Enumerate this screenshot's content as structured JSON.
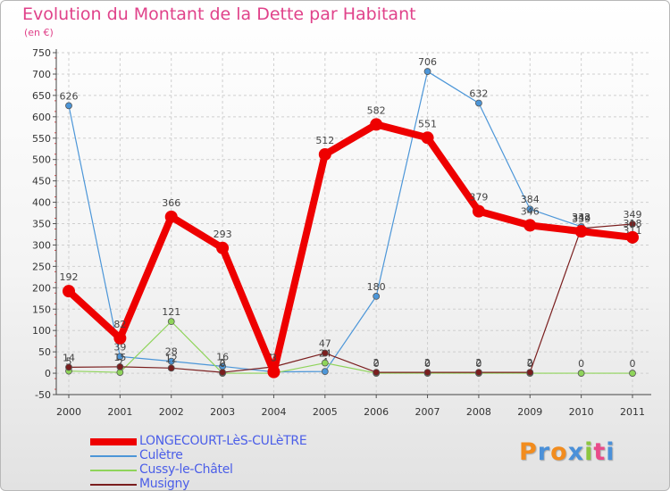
{
  "chart_data": {
    "type": "line",
    "title": "Evolution du Montant de la Dette par Habitant",
    "unit": "(en €)",
    "x": [
      "2000",
      "2001",
      "2002",
      "2003",
      "2004",
      "2005",
      "2006",
      "2007",
      "2008",
      "2009",
      "2010",
      "2011"
    ],
    "ylim": [
      -50,
      750
    ],
    "yticks": [
      -50,
      0,
      50,
      100,
      150,
      200,
      250,
      300,
      350,
      400,
      450,
      500,
      550,
      600,
      650,
      700,
      750
    ],
    "grid": true,
    "legend_position": "bottom-left",
    "series": [
      {
        "name": "LONGECOURT-LèS-CULèTRE",
        "values": [
          192,
          82,
          366,
          293,
          3,
          512,
          582,
          551,
          379,
          346,
          332,
          318
        ],
        "color": "#ee0000",
        "emphasis": true
      },
      {
        "name": "Culètre",
        "values": [
          626,
          39,
          28,
          16,
          3,
          4,
          180,
          706,
          632,
          384,
          343,
          311
        ],
        "color": "#4c96d8"
      },
      {
        "name": "Cussy-le-Châtel",
        "values": [
          5,
          2,
          121,
          0,
          0,
          24,
          0,
          0,
          0,
          0,
          0,
          0
        ],
        "color": "#8fd45a"
      },
      {
        "name": "Musigny",
        "values": [
          14,
          15,
          12,
          2,
          15,
          47,
          2,
          2,
          2,
          2,
          339,
          349
        ],
        "color": "#7a1e1e"
      }
    ]
  },
  "brand": {
    "letters": [
      "P",
      "r",
      "o",
      "x",
      "i",
      "t",
      "i"
    ],
    "colors": [
      "#f28c1e",
      "#4a90d9",
      "#f28c1e",
      "#4a90d9",
      "#8cc63f",
      "#e94b8a",
      "#4a90d9"
    ]
  }
}
